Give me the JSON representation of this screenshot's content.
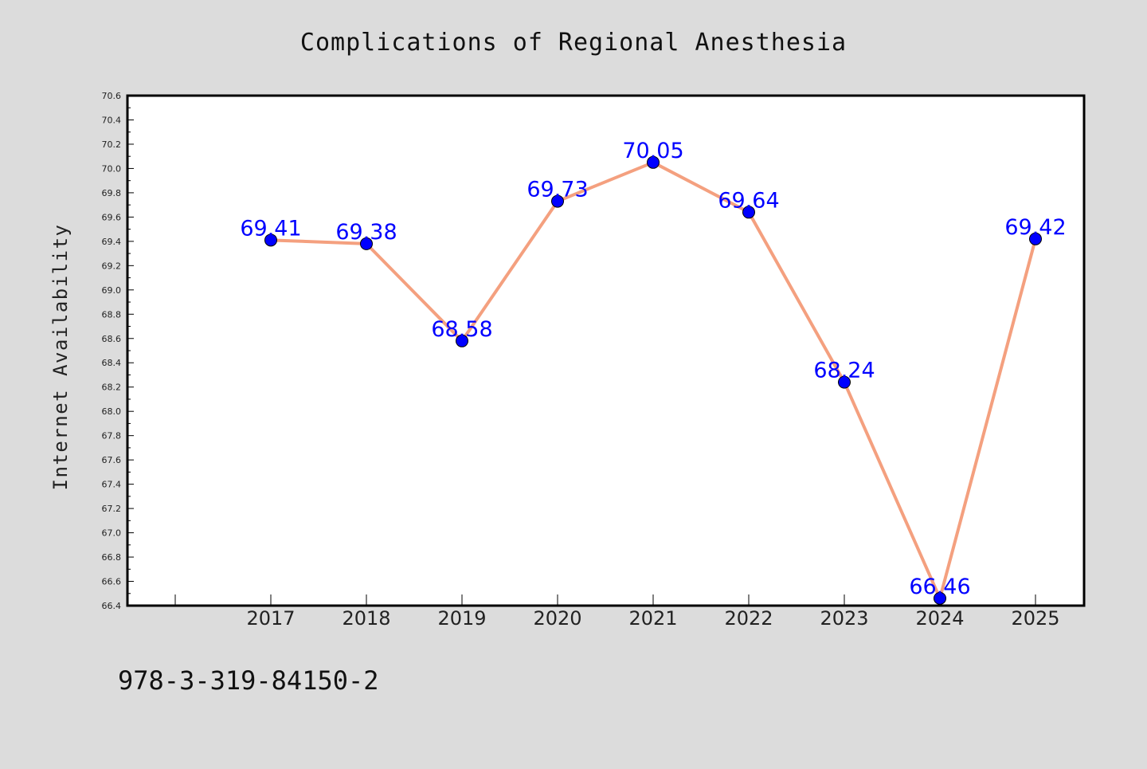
{
  "chart_data": {
    "type": "line",
    "title": "Complications of Regional Anesthesia",
    "xlabel": "",
    "ylabel": "Internet Availability",
    "categories": [
      "2017",
      "2018",
      "2019",
      "2020",
      "2021",
      "2022",
      "2023",
      "2024",
      "2025"
    ],
    "series": [
      {
        "values": [
          69.41,
          69.38,
          68.58,
          69.73,
          70.05,
          69.64,
          68.24,
          66.46,
          69.42
        ],
        "line_color": "#f4a07f",
        "marker_color": "#0000ff",
        "label_color": "#0000ff"
      }
    ],
    "data_labels": [
      "69.41",
      "69.38",
      "68.58",
      "69.73",
      "70.05",
      "69.64",
      "68.24",
      "66.46",
      "69.42"
    ],
    "ylim": [
      66.4,
      70.6
    ],
    "yticks": [
      "66.4",
      "66.6",
      "66.8",
      "67.0",
      "67.2",
      "67.4",
      "67.6",
      "67.8",
      "68.0",
      "68.2",
      "68.4",
      "68.6",
      "68.8",
      "69.0",
      "69.2",
      "69.4",
      "69.6",
      "69.8",
      "70.0",
      "70.2",
      "70.4",
      "70.6"
    ],
    "grid": false,
    "legend": "none",
    "background_color": "#dcdcdc",
    "plot_background_color": "#ffffff"
  },
  "footer": {
    "text": "978-3-319-84150-2"
  }
}
